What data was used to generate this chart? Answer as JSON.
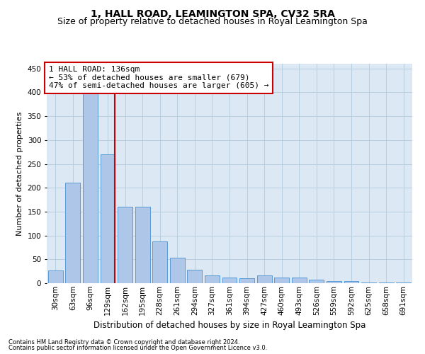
{
  "title": "1, HALL ROAD, LEAMINGTON SPA, CV32 5RA",
  "subtitle": "Size of property relative to detached houses in Royal Leamington Spa",
  "xlabel": "Distribution of detached houses by size in Royal Leamington Spa",
  "ylabel": "Number of detached properties",
  "footnote1": "Contains HM Land Registry data © Crown copyright and database right 2024.",
  "footnote2": "Contains public sector information licensed under the Open Government Licence v3.0.",
  "categories": [
    "30sqm",
    "63sqm",
    "96sqm",
    "129sqm",
    "162sqm",
    "195sqm",
    "228sqm",
    "261sqm",
    "294sqm",
    "327sqm",
    "361sqm",
    "394sqm",
    "427sqm",
    "460sqm",
    "493sqm",
    "526sqm",
    "559sqm",
    "592sqm",
    "625sqm",
    "658sqm",
    "691sqm"
  ],
  "values": [
    27,
    210,
    400,
    270,
    160,
    160,
    87,
    53,
    28,
    17,
    12,
    10,
    16,
    12,
    12,
    7,
    5,
    5,
    2,
    1,
    2
  ],
  "bar_color": "#aec6e8",
  "bar_edge_color": "#5b9bd5",
  "annotation_text": "1 HALL ROAD: 136sqm\n← 53% of detached houses are smaller (679)\n47% of semi-detached houses are larger (605) →",
  "annotation_box_color": "#ffffff",
  "annotation_box_edge": "#cc0000",
  "vline_color": "#cc0000",
  "background_color": "#ffffff",
  "plot_bg_color": "#dce9f5",
  "grid_color": "#b8cfe0",
  "title_fontsize": 10,
  "subtitle_fontsize": 9,
  "ylabel_fontsize": 8,
  "xlabel_fontsize": 8.5,
  "tick_fontsize": 7.5,
  "annotation_fontsize": 8,
  "footnote_fontsize": 6,
  "ylim": [
    0,
    460
  ],
  "yticks": [
    0,
    50,
    100,
    150,
    200,
    250,
    300,
    350,
    400,
    450
  ]
}
